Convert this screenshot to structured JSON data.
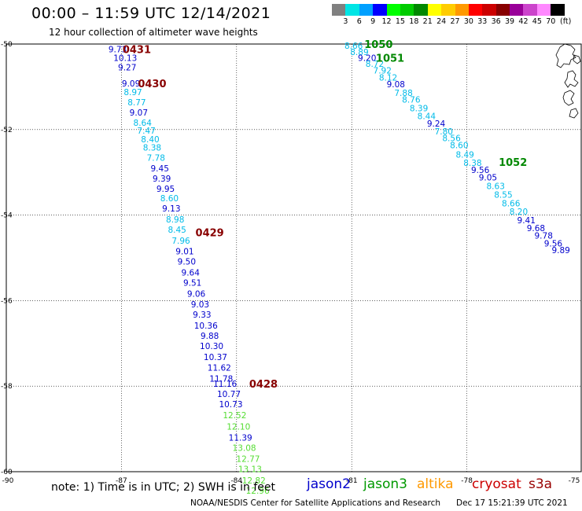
{
  "header": {
    "title": "00:00 – 11:59 UTC 12/14/2021",
    "subtitle": "12 hour collection of altimeter wave heights"
  },
  "scale": {
    "colors": [
      "#808080",
      "#00e5e5",
      "#00a0ff",
      "#0000ff",
      "#00ff00",
      "#00cc00",
      "#008800",
      "#ffff00",
      "#ffcc00",
      "#ff9900",
      "#ff0000",
      "#cc0000",
      "#880000",
      "#990099",
      "#cc44cc",
      "#ff88ff",
      "#000000"
    ],
    "labels": [
      "3",
      "6",
      "9",
      "12",
      "15",
      "18",
      "21",
      "24",
      "27",
      "30",
      "33",
      "36",
      "39",
      "42",
      "45",
      "70"
    ],
    "unit": "(ft)"
  },
  "footer": {
    "note": "note:  1) Time is in UTC;  2) SWH is in feet",
    "credit": "NOAA/NESDIS Center for Satellite Applications and Research",
    "stamp": "Dec 17 15:21:39 UTC 2021",
    "legend": [
      {
        "name": "jason2",
        "color": "#0000cc"
      },
      {
        "name": "jason3",
        "color": "#009900"
      },
      {
        "name": "altika",
        "color": "#ff9900"
      },
      {
        "name": "cryosat",
        "color": "#cc0000"
      },
      {
        "name": "s3a",
        "color": "#990000"
      }
    ]
  },
  "chart_data": {
    "type": "scatter",
    "title": "00:00 – 11:59 UTC 12/14/2021",
    "subtitle": "12 hour collection of altimeter wave heights",
    "xlabel": "",
    "ylabel": "",
    "xlim": [
      -90,
      -75
    ],
    "ylim": [
      -60,
      -50
    ],
    "x_ticks": [
      -90,
      -87,
      -84,
      -81,
      -78,
      -75
    ],
    "y_ticks": [
      -50,
      -52,
      -54,
      -56,
      -58,
      -60
    ],
    "unit": "ft",
    "colors": {
      "cyan": "#00bbe8",
      "blue": "#0000cc",
      "green": "#55dd33",
      "darkred": "#880000",
      "darkgreen": "#008800"
    },
    "tracks": [
      {
        "name": "west-track",
        "points": [
          {
            "x": -87.1,
            "y": -50.12,
            "label": "9.73",
            "c": "blue"
          },
          {
            "x": -86.9,
            "y": -50.32,
            "label": "10.13",
            "c": "blue"
          },
          {
            "x": -86.85,
            "y": -50.54,
            "label": "9.27",
            "c": "blue"
          },
          {
            "x": -86.75,
            "y": -50.92,
            "label": "9.09",
            "c": "blue"
          },
          {
            "x": -86.7,
            "y": -51.12,
            "label": "8.97",
            "c": "cyan"
          },
          {
            "x": -86.6,
            "y": -51.36,
            "label": "8.77",
            "c": "cyan"
          },
          {
            "x": -86.55,
            "y": -51.6,
            "label": "9.07",
            "c": "blue"
          },
          {
            "x": -86.45,
            "y": -51.84,
            "label": "8.64",
            "c": "cyan"
          },
          {
            "x": -86.35,
            "y": -52.02,
            "label": "7.47",
            "c": "cyan"
          },
          {
            "x": -86.25,
            "y": -52.22,
            "label": "8.40",
            "c": "cyan"
          },
          {
            "x": -86.2,
            "y": -52.42,
            "label": "8.38",
            "c": "cyan"
          },
          {
            "x": -86.1,
            "y": -52.66,
            "label": "7.78",
            "c": "cyan"
          },
          {
            "x": -86.0,
            "y": -52.9,
            "label": "9.45",
            "c": "blue"
          },
          {
            "x": -85.95,
            "y": -53.14,
            "label": "9.39",
            "c": "blue"
          },
          {
            "x": -85.85,
            "y": -53.38,
            "label": "9.95",
            "c": "blue"
          },
          {
            "x": -85.75,
            "y": -53.6,
            "label": "8.60",
            "c": "cyan"
          },
          {
            "x": -85.7,
            "y": -53.84,
            "label": "9.13",
            "c": "blue"
          },
          {
            "x": -85.6,
            "y": -54.1,
            "label": "8.98",
            "c": "cyan"
          },
          {
            "x": -85.55,
            "y": -54.34,
            "label": "8.45",
            "c": "cyan"
          },
          {
            "x": -85.45,
            "y": -54.6,
            "label": "7.96",
            "c": "cyan"
          },
          {
            "x": -85.35,
            "y": -54.84,
            "label": "9.01",
            "c": "blue"
          },
          {
            "x": -85.3,
            "y": -55.08,
            "label": "9.50",
            "c": "blue"
          },
          {
            "x": -85.2,
            "y": -55.34,
            "label": "9.64",
            "c": "blue"
          },
          {
            "x": -85.15,
            "y": -55.58,
            "label": "9.51",
            "c": "blue"
          },
          {
            "x": -85.05,
            "y": -55.84,
            "label": "9.06",
            "c": "blue"
          },
          {
            "x": -84.95,
            "y": -56.08,
            "label": "9.03",
            "c": "blue"
          },
          {
            "x": -84.9,
            "y": -56.32,
            "label": "9.33",
            "c": "blue"
          },
          {
            "x": -84.8,
            "y": -56.58,
            "label": "10.36",
            "c": "blue"
          },
          {
            "x": -84.7,
            "y": -56.82,
            "label": "9.88",
            "c": "blue"
          },
          {
            "x": -84.65,
            "y": -57.06,
            "label": "10.30",
            "c": "blue"
          },
          {
            "x": -84.55,
            "y": -57.32,
            "label": "10.37",
            "c": "blue"
          },
          {
            "x": -84.45,
            "y": -57.56,
            "label": "11.62",
            "c": "blue"
          },
          {
            "x": -84.4,
            "y": -57.82,
            "label": "11.78",
            "c": "blue"
          },
          {
            "x": -84.3,
            "y": -57.94,
            "label": "11.16",
            "c": "blue"
          },
          {
            "x": -84.2,
            "y": -58.18,
            "label": "10.77",
            "c": "blue"
          },
          {
            "x": -84.15,
            "y": -58.42,
            "label": "10.73",
            "c": "blue"
          },
          {
            "x": -84.05,
            "y": -58.68,
            "label": "12.52",
            "c": "green"
          },
          {
            "x": -83.95,
            "y": -58.94,
            "label": "12.10",
            "c": "green"
          },
          {
            "x": -83.9,
            "y": -59.2,
            "label": "11.39",
            "c": "blue"
          },
          {
            "x": -83.8,
            "y": -59.44,
            "label": "13.08",
            "c": "green"
          },
          {
            "x": -83.7,
            "y": -59.7,
            "label": "12.77",
            "c": "green"
          },
          {
            "x": -83.65,
            "y": -59.94,
            "label": "13.13",
            "c": "green"
          },
          {
            "x": -83.55,
            "y": -60.2,
            "label": "12.82",
            "c": "green"
          },
          {
            "x": -83.45,
            "y": -60.44,
            "label": "12.96",
            "c": "green"
          }
        ],
        "time_labels": [
          {
            "x": -86.6,
            "y": -50.12,
            "label": "0431",
            "c": "darkred"
          },
          {
            "x": -86.2,
            "y": -50.92,
            "label": "0430",
            "c": "darkred"
          },
          {
            "x": -84.7,
            "y": -54.4,
            "label": "0429",
            "c": "darkred"
          },
          {
            "x": -83.3,
            "y": -57.94,
            "label": "0428",
            "c": "darkred"
          }
        ]
      },
      {
        "name": "east-track",
        "points": [
          {
            "x": -80.95,
            "y": -50.04,
            "label": "8.66",
            "c": "cyan"
          },
          {
            "x": -80.8,
            "y": -50.18,
            "label": "8.89",
            "c": "cyan"
          },
          {
            "x": -80.6,
            "y": -50.32,
            "label": "9.20",
            "c": "blue"
          },
          {
            "x": -80.4,
            "y": -50.46,
            "label": "8.72",
            "c": "cyan"
          },
          {
            "x": -80.2,
            "y": -50.62,
            "label": "7.92",
            "c": "cyan"
          },
          {
            "x": -80.05,
            "y": -50.78,
            "label": "8.12",
            "c": "cyan"
          },
          {
            "x": -79.85,
            "y": -50.94,
            "label": "9.08",
            "c": "blue"
          },
          {
            "x": -79.65,
            "y": -51.14,
            "label": "7.88",
            "c": "cyan"
          },
          {
            "x": -79.45,
            "y": -51.3,
            "label": "8.76",
            "c": "cyan"
          },
          {
            "x": -79.25,
            "y": -51.5,
            "label": "8.39",
            "c": "cyan"
          },
          {
            "x": -79.05,
            "y": -51.68,
            "label": "8.44",
            "c": "cyan"
          },
          {
            "x": -78.8,
            "y": -51.86,
            "label": "9.24",
            "c": "blue"
          },
          {
            "x": -78.6,
            "y": -52.04,
            "label": "7.80",
            "c": "cyan"
          },
          {
            "x": -78.4,
            "y": -52.2,
            "label": "8.56",
            "c": "cyan"
          },
          {
            "x": -78.2,
            "y": -52.36,
            "label": "8.60",
            "c": "cyan"
          },
          {
            "x": -78.05,
            "y": -52.58,
            "label": "8.49",
            "c": "cyan"
          },
          {
            "x": -77.85,
            "y": -52.78,
            "label": "8.38",
            "c": "cyan"
          },
          {
            "x": -77.65,
            "y": -52.94,
            "label": "9.56",
            "c": "blue"
          },
          {
            "x": -77.45,
            "y": -53.12,
            "label": "9.05",
            "c": "blue"
          },
          {
            "x": -77.25,
            "y": -53.32,
            "label": "8.63",
            "c": "cyan"
          },
          {
            "x": -77.05,
            "y": -53.52,
            "label": "8.55",
            "c": "cyan"
          },
          {
            "x": -76.85,
            "y": -53.72,
            "label": "8.66",
            "c": "cyan"
          },
          {
            "x": -76.65,
            "y": -53.92,
            "label": "8.20",
            "c": "cyan"
          },
          {
            "x": -76.45,
            "y": -54.12,
            "label": "9.41",
            "c": "blue"
          },
          {
            "x": -76.2,
            "y": -54.3,
            "label": "9.68",
            "c": "blue"
          },
          {
            "x": -76.0,
            "y": -54.48,
            "label": "9.78",
            "c": "blue"
          },
          {
            "x": -75.75,
            "y": -54.66,
            "label": "9.56",
            "c": "blue"
          },
          {
            "x": -75.55,
            "y": -54.82,
            "label": "9.89",
            "c": "blue"
          }
        ],
        "time_labels": [
          {
            "x": -80.3,
            "y": -50.0,
            "label": "1050",
            "c": "darkgreen"
          },
          {
            "x": -80.0,
            "y": -50.32,
            "label": "1051",
            "c": "darkgreen"
          },
          {
            "x": -76.8,
            "y": -52.76,
            "label": "1052",
            "c": "darkgreen"
          }
        ]
      }
    ]
  }
}
